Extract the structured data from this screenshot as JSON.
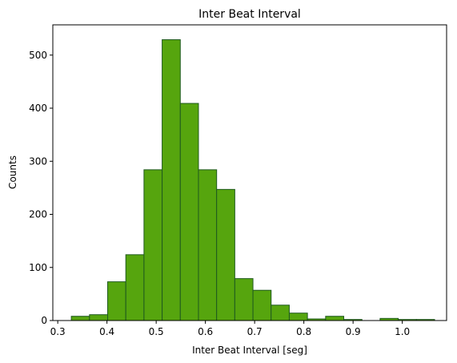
{
  "chart_data": {
    "type": "bar",
    "title": "Inter Beat Interval",
    "xlabel": "Inter Beat Interval [seg]",
    "ylabel": "Counts",
    "xlim": [
      0.29,
      1.09
    ],
    "ylim": [
      0,
      557
    ],
    "xticks": [
      0.3,
      0.4,
      0.5,
      0.6,
      0.7,
      0.8,
      0.9,
      1.0
    ],
    "xtick_labels": [
      "0.3",
      "0.4",
      "0.5",
      "0.6",
      "0.7",
      "0.8",
      "0.9",
      "1.0"
    ],
    "yticks": [
      0,
      100,
      200,
      300,
      400,
      500
    ],
    "ytick_labels": [
      "0",
      "100",
      "200",
      "300",
      "400",
      "500"
    ],
    "grid": false,
    "bar_fill": "#56a50e",
    "bar_edge": "#1f5a1f",
    "bins": [
      {
        "x0": 0.3276,
        "x1": 0.3645,
        "count": 8
      },
      {
        "x0": 0.3645,
        "x1": 0.4014,
        "count": 11
      },
      {
        "x0": 0.4014,
        "x1": 0.4383,
        "count": 73
      },
      {
        "x0": 0.4383,
        "x1": 0.4752,
        "count": 124
      },
      {
        "x0": 0.4752,
        "x1": 0.5121,
        "count": 284
      },
      {
        "x0": 0.5121,
        "x1": 0.549,
        "count": 529
      },
      {
        "x0": 0.549,
        "x1": 0.5859,
        "count": 409
      },
      {
        "x0": 0.5859,
        "x1": 0.6228,
        "count": 284
      },
      {
        "x0": 0.6228,
        "x1": 0.6597,
        "count": 247
      },
      {
        "x0": 0.6597,
        "x1": 0.6966,
        "count": 79
      },
      {
        "x0": 0.6966,
        "x1": 0.7335,
        "count": 57
      },
      {
        "x0": 0.7335,
        "x1": 0.7704,
        "count": 29
      },
      {
        "x0": 0.7704,
        "x1": 0.8073,
        "count": 14
      },
      {
        "x0": 0.8073,
        "x1": 0.8442,
        "count": 3
      },
      {
        "x0": 0.8442,
        "x1": 0.8811,
        "count": 8
      },
      {
        "x0": 0.8811,
        "x1": 0.918,
        "count": 2
      },
      {
        "x0": 0.918,
        "x1": 0.9549,
        "count": 0
      },
      {
        "x0": 0.9549,
        "x1": 0.9918,
        "count": 4
      },
      {
        "x0": 0.9918,
        "x1": 1.0287,
        "count": 2
      },
      {
        "x0": 1.0287,
        "x1": 1.0656,
        "count": 2
      }
    ]
  }
}
